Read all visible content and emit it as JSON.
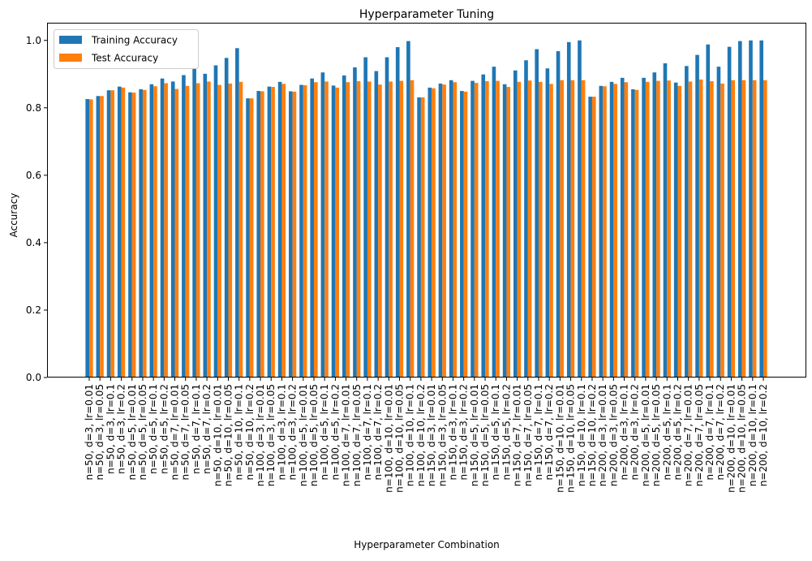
{
  "chart_data": {
    "type": "bar",
    "title": "Hyperparameter Tuning",
    "xlabel": "Hyperparameter Combination",
    "ylabel": "Accuracy",
    "ylim": [
      0,
      1.05
    ],
    "yticks": [
      "0.0",
      "0.2",
      "0.4",
      "0.6",
      "0.8",
      "1.0"
    ],
    "legend_position": "top-left",
    "categories": [
      "n=50, d=3, lr=0.01",
      "n=50, d=3, lr=0.05",
      "n=50, d=3, lr=0.1",
      "n=50, d=3, lr=0.2",
      "n=50, d=5, lr=0.01",
      "n=50, d=5, lr=0.05",
      "n=50, d=5, lr=0.1",
      "n=50, d=5, lr=0.2",
      "n=50, d=7, lr=0.01",
      "n=50, d=7, lr=0.05",
      "n=50, d=7, lr=0.1",
      "n=50, d=7, lr=0.2",
      "n=50, d=10, lr=0.01",
      "n=50, d=10, lr=0.05",
      "n=50, d=10, lr=0.1",
      "n=50, d=10, lr=0.2",
      "n=100, d=3, lr=0.01",
      "n=100, d=3, lr=0.05",
      "n=100, d=3, lr=0.1",
      "n=100, d=3, lr=0.2",
      "n=100, d=5, lr=0.01",
      "n=100, d=5, lr=0.05",
      "n=100, d=5, lr=0.1",
      "n=100, d=5, lr=0.2",
      "n=100, d=7, lr=0.01",
      "n=100, d=7, lr=0.05",
      "n=100, d=7, lr=0.1",
      "n=100, d=7, lr=0.2",
      "n=100, d=10, lr=0.01",
      "n=100, d=10, lr=0.05",
      "n=100, d=10, lr=0.1",
      "n=100, d=10, lr=0.2",
      "n=150, d=3, lr=0.01",
      "n=150, d=3, lr=0.05",
      "n=150, d=3, lr=0.1",
      "n=150, d=3, lr=0.2",
      "n=150, d=5, lr=0.01",
      "n=150, d=5, lr=0.05",
      "n=150, d=5, lr=0.1",
      "n=150, d=5, lr=0.2",
      "n=150, d=7, lr=0.01",
      "n=150, d=7, lr=0.05",
      "n=150, d=7, lr=0.1",
      "n=150, d=7, lr=0.2",
      "n=150, d=10, lr=0.01",
      "n=150, d=10, lr=0.05",
      "n=150, d=10, lr=0.1",
      "n=150, d=10, lr=0.2",
      "n=200, d=3, lr=0.01",
      "n=200, d=3, lr=0.05",
      "n=200, d=3, lr=0.1",
      "n=200, d=3, lr=0.2",
      "n=200, d=5, lr=0.01",
      "n=200, d=5, lr=0.05",
      "n=200, d=5, lr=0.1",
      "n=200, d=5, lr=0.2",
      "n=200, d=7, lr=0.01",
      "n=200, d=7, lr=0.05",
      "n=200, d=7, lr=0.1",
      "n=200, d=7, lr=0.2",
      "n=200, d=10, lr=0.01",
      "n=200, d=10, lr=0.05",
      "n=200, d=10, lr=0.1",
      "n=200, d=10, lr=0.2"
    ],
    "series": [
      {
        "name": "Training Accuracy",
        "color": "#1f77b4",
        "values": [
          0.826,
          0.835,
          0.852,
          0.863,
          0.846,
          0.855,
          0.87,
          0.887,
          0.878,
          0.897,
          0.918,
          0.901,
          0.926,
          0.948,
          0.977,
          0.828,
          0.85,
          0.863,
          0.877,
          0.849,
          0.868,
          0.887,
          0.905,
          0.866,
          0.896,
          0.92,
          0.95,
          0.909,
          0.95,
          0.98,
          0.998,
          0.831,
          0.86,
          0.872,
          0.882,
          0.85,
          0.88,
          0.899,
          0.922,
          0.87,
          0.911,
          0.941,
          0.974,
          0.917,
          0.968,
          0.995,
          1.0,
          0.833,
          0.865,
          0.877,
          0.889,
          0.855,
          0.889,
          0.905,
          0.932,
          0.875,
          0.924,
          0.957,
          0.988,
          0.922,
          0.981,
          0.998,
          1.0,
          1.0
        ]
      },
      {
        "name": "Test Accuracy",
        "color": "#ff7f0e",
        "values": [
          0.825,
          0.835,
          0.852,
          0.86,
          0.845,
          0.853,
          0.864,
          0.873,
          0.856,
          0.865,
          0.873,
          0.878,
          0.868,
          0.872,
          0.877,
          0.828,
          0.849,
          0.862,
          0.871,
          0.848,
          0.867,
          0.876,
          0.878,
          0.86,
          0.876,
          0.879,
          0.878,
          0.869,
          0.878,
          0.88,
          0.882,
          0.831,
          0.858,
          0.869,
          0.876,
          0.848,
          0.874,
          0.879,
          0.88,
          0.862,
          0.877,
          0.881,
          0.877,
          0.871,
          0.882,
          0.882,
          0.882,
          0.833,
          0.864,
          0.871,
          0.876,
          0.853,
          0.877,
          0.88,
          0.881,
          0.865,
          0.878,
          0.884,
          0.879,
          0.872,
          0.882,
          0.882,
          0.882,
          0.882
        ]
      }
    ]
  }
}
